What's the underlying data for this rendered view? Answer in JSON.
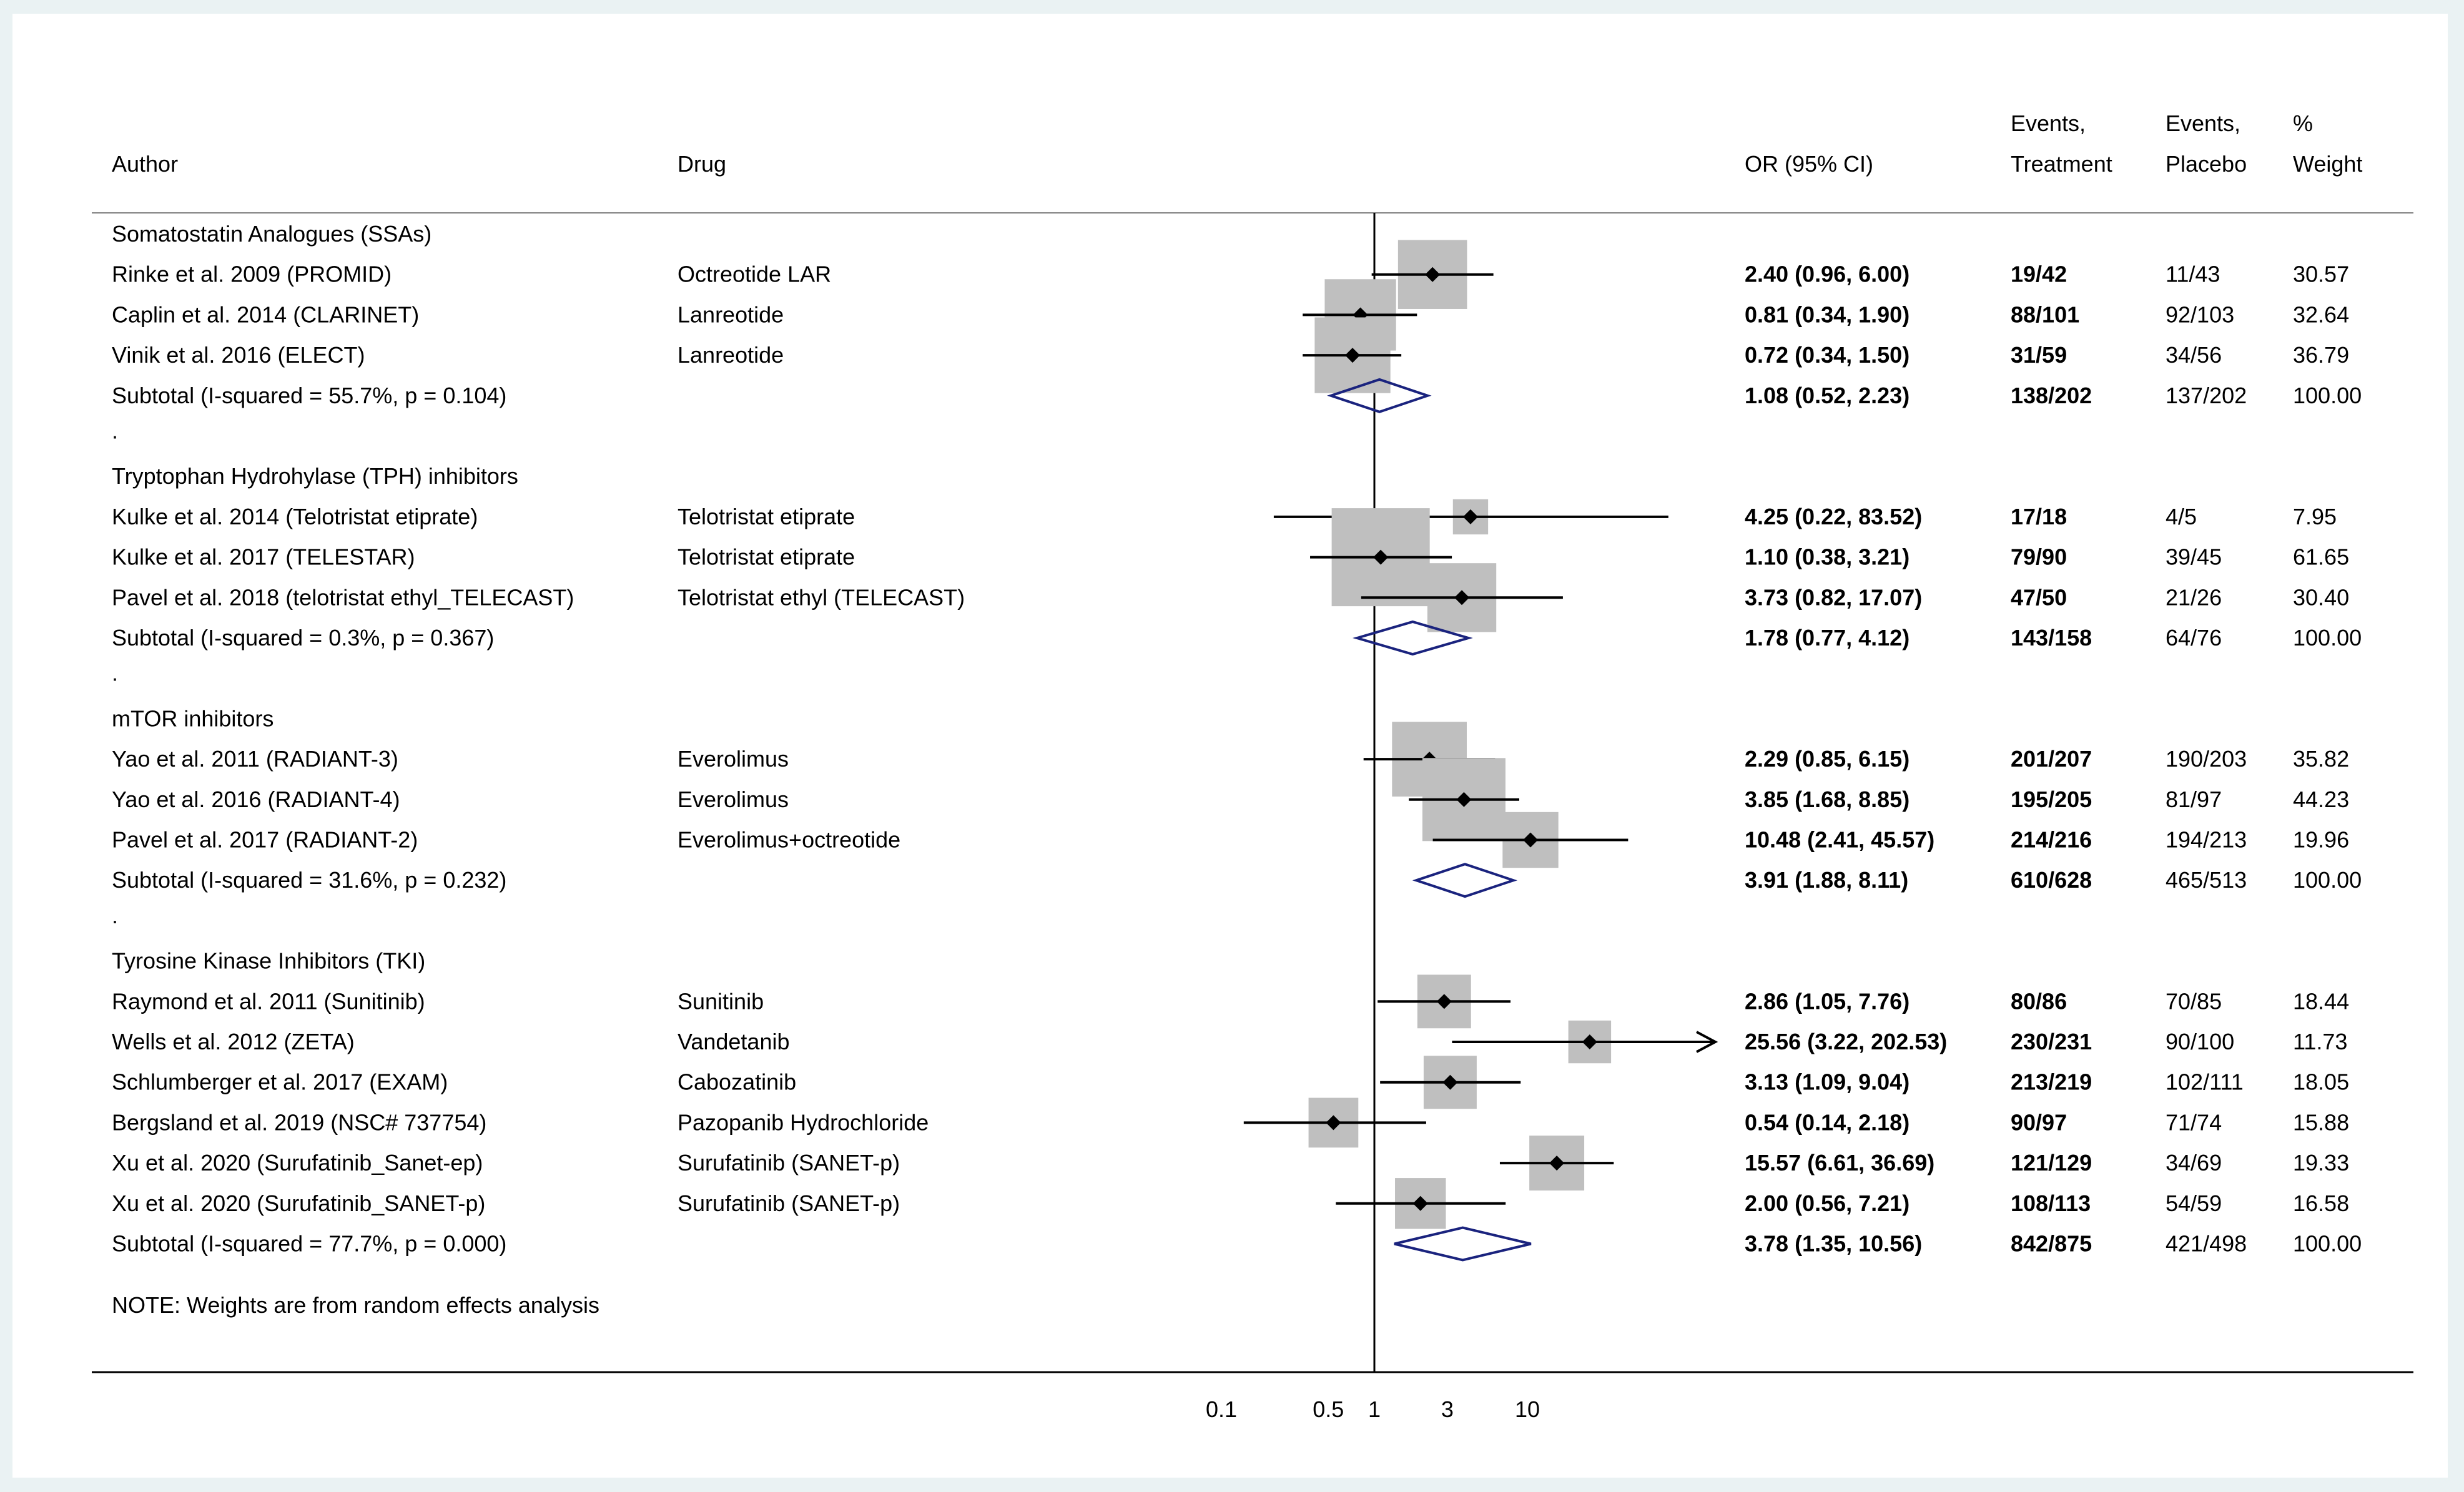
{
  "chart_data": {
    "type": "forest-plot",
    "scale": "log",
    "reference_line": 1,
    "columns": {
      "author": "Author",
      "drug": "Drug",
      "or": "OR (95% CI)",
      "events_treatment": [
        "Events,",
        "Treatment"
      ],
      "events_placebo": [
        "Events,",
        "Placebo"
      ],
      "weight": [
        "%",
        "Weight"
      ]
    },
    "x_ticks": [
      {
        "value": 0.1,
        "label": "0.1"
      },
      {
        "value": 0.5,
        "label": "0.5"
      },
      {
        "value": 1,
        "label": "1"
      },
      {
        "value": 3,
        "label": "3"
      },
      {
        "value": 10,
        "label": "10"
      }
    ],
    "groups": [
      {
        "name": "Somatostatin Analogues (SSAs)",
        "studies": [
          {
            "author": "Rinke et al. 2009 (PROMID)",
            "drug": "Octreotide LAR",
            "or": 2.4,
            "lo": 0.96,
            "hi": 6.0,
            "or_text": "2.40 (0.96, 6.00)",
            "events_t": "19/42",
            "events_p": "11/43",
            "weight": "30.57",
            "wt": 30.57
          },
          {
            "author": "Caplin et al. 2014 (CLARINET)",
            "drug": "Lanreotide",
            "or": 0.81,
            "lo": 0.34,
            "hi": 1.9,
            "or_text": "0.81 (0.34, 1.90)",
            "events_t": "88/101",
            "events_p": "92/103",
            "weight": "32.64",
            "wt": 32.64
          },
          {
            "author": "Vinik et al. 2016 (ELECT)",
            "drug": "Lanreotide",
            "or": 0.72,
            "lo": 0.34,
            "hi": 1.5,
            "or_text": "0.72 (0.34, 1.50)",
            "events_t": "31/59",
            "events_p": "34/56",
            "weight": "36.79",
            "wt": 36.79
          }
        ],
        "subtotal": {
          "label": "Subtotal  (I-squared = 55.7%, p = 0.104)",
          "or": 1.08,
          "lo": 0.52,
          "hi": 2.23,
          "or_text": "1.08 (0.52, 2.23)",
          "events_t": "138/202",
          "events_p": "137/202",
          "weight": "100.00"
        }
      },
      {
        "name": "Tryptophan Hydrohylase (TPH) inhibitors",
        "studies": [
          {
            "author": "Kulke et al. 2014 (Telotristat etiprate)",
            "drug": "Telotristat etiprate",
            "or": 4.25,
            "lo": 0.22,
            "hi": 83.52,
            "or_text": "4.25 (0.22, 83.52)",
            "events_t": "17/18",
            "events_p": "4/5",
            "weight": "7.95",
            "wt": 7.95
          },
          {
            "author": "Kulke et al. 2017 (TELESTAR)",
            "drug": "Telotristat etiprate",
            "or": 1.1,
            "lo": 0.38,
            "hi": 3.21,
            "or_text": "1.10 (0.38, 3.21)",
            "events_t": "79/90",
            "events_p": "39/45",
            "weight": "61.65",
            "wt": 61.65
          },
          {
            "author": "Pavel et al. 2018 (telotristat ethyl_TELECAST)",
            "drug": "Telotristat ethyl (TELECAST)",
            "or": 3.73,
            "lo": 0.82,
            "hi": 17.07,
            "or_text": "3.73 (0.82, 17.07)",
            "events_t": "47/50",
            "events_p": "21/26",
            "weight": "30.40",
            "wt": 30.4
          }
        ],
        "subtotal": {
          "label": "Subtotal  (I-squared = 0.3%, p = 0.367)",
          "or": 1.78,
          "lo": 0.77,
          "hi": 4.12,
          "or_text": "1.78 (0.77, 4.12)",
          "events_t": "143/158",
          "events_p": "64/76",
          "weight": "100.00"
        }
      },
      {
        "name": "mTOR inhibitors",
        "studies": [
          {
            "author": "Yao et al. 2011 (RADIANT-3)",
            "drug": "Everolimus",
            "or": 2.29,
            "lo": 0.85,
            "hi": 6.15,
            "or_text": "2.29 (0.85, 6.15)",
            "events_t": "201/207",
            "events_p": "190/203",
            "weight": "35.82",
            "wt": 35.82
          },
          {
            "author": "Yao et al. 2016 (RADIANT-4)",
            "drug": "Everolimus",
            "or": 3.85,
            "lo": 1.68,
            "hi": 8.85,
            "or_text": "3.85 (1.68, 8.85)",
            "events_t": "195/205",
            "events_p": "81/97",
            "weight": "44.23",
            "wt": 44.23
          },
          {
            "author": "Pavel et al. 2017 (RADIANT-2)",
            "drug": "Everolimus+octreotide",
            "or": 10.48,
            "lo": 2.41,
            "hi": 45.57,
            "or_text": "10.48 (2.41, 45.57)",
            "events_t": "214/216",
            "events_p": "194/213",
            "weight": "19.96",
            "wt": 19.96
          }
        ],
        "subtotal": {
          "label": "Subtotal  (I-squared = 31.6%, p = 0.232)",
          "or": 3.91,
          "lo": 1.88,
          "hi": 8.11,
          "or_text": "3.91 (1.88, 8.11)",
          "events_t": "610/628",
          "events_p": "465/513",
          "weight": "100.00"
        }
      },
      {
        "name": "Tyrosine Kinase Inhibitors (TKI)",
        "studies": [
          {
            "author": "Raymond et al. 2011 (Sunitinib)",
            "drug": "Sunitinib",
            "or": 2.86,
            "lo": 1.05,
            "hi": 7.76,
            "or_text": "2.86 (1.05, 7.76)",
            "events_t": "80/86",
            "events_p": "70/85",
            "weight": "18.44",
            "wt": 18.44
          },
          {
            "author": "Wells et al. 2012 (ZETA)",
            "drug": "Vandetanib",
            "or": 25.56,
            "lo": 3.22,
            "hi": 202.53,
            "or_text": "25.56 (3.22, 202.53)",
            "events_t": "230/231",
            "events_p": "90/100",
            "weight": "11.73",
            "wt": 11.73
          },
          {
            "author": "Schlumberger et al. 2017 (EXAM)",
            "drug": "Cabozatinib",
            "or": 3.13,
            "lo": 1.09,
            "hi": 9.04,
            "or_text": "3.13 (1.09, 9.04)",
            "events_t": "213/219",
            "events_p": "102/111",
            "weight": "18.05",
            "wt": 18.05
          },
          {
            "author": "Bergsland et al. 2019 (NSC# 737754)",
            "drug": "Pazopanib Hydrochloride",
            "or": 0.54,
            "lo": 0.14,
            "hi": 2.18,
            "or_text": "0.54 (0.14, 2.18)",
            "events_t": "90/97",
            "events_p": "71/74",
            "weight": "15.88",
            "wt": 15.88
          },
          {
            "author": "Xu et al. 2020 (Surufatinib_Sanet-ep)",
            "drug": "Surufatinib (SANET-p)",
            "or": 15.57,
            "lo": 6.61,
            "hi": 36.69,
            "or_text": "15.57 (6.61, 36.69)",
            "events_t": "121/129",
            "events_p": "34/69",
            "weight": "19.33",
            "wt": 19.33
          },
          {
            "author": "Xu et al. 2020 (Surufatinib_SANET-p)",
            "drug": "Surufatinib (SANET-p)",
            "or": 2.0,
            "lo": 0.56,
            "hi": 7.21,
            "or_text": "2.00 (0.56, 7.21)",
            "events_t": "108/113",
            "events_p": "54/59",
            "weight": "16.58",
            "wt": 16.58
          }
        ],
        "subtotal": {
          "label": "Subtotal  (I-squared = 77.7%, p = 0.000)",
          "or": 3.78,
          "lo": 1.35,
          "hi": 10.56,
          "or_text": "3.78 (1.35, 10.56)",
          "events_t": "842/875",
          "events_p": "421/498",
          "weight": "100.00"
        }
      }
    ],
    "separator": ".",
    "note": "NOTE: Weights are from random effects analysis",
    "colors": {
      "box": "#bfbfbf",
      "diamond": "#1a237e",
      "line": "#000000"
    }
  }
}
